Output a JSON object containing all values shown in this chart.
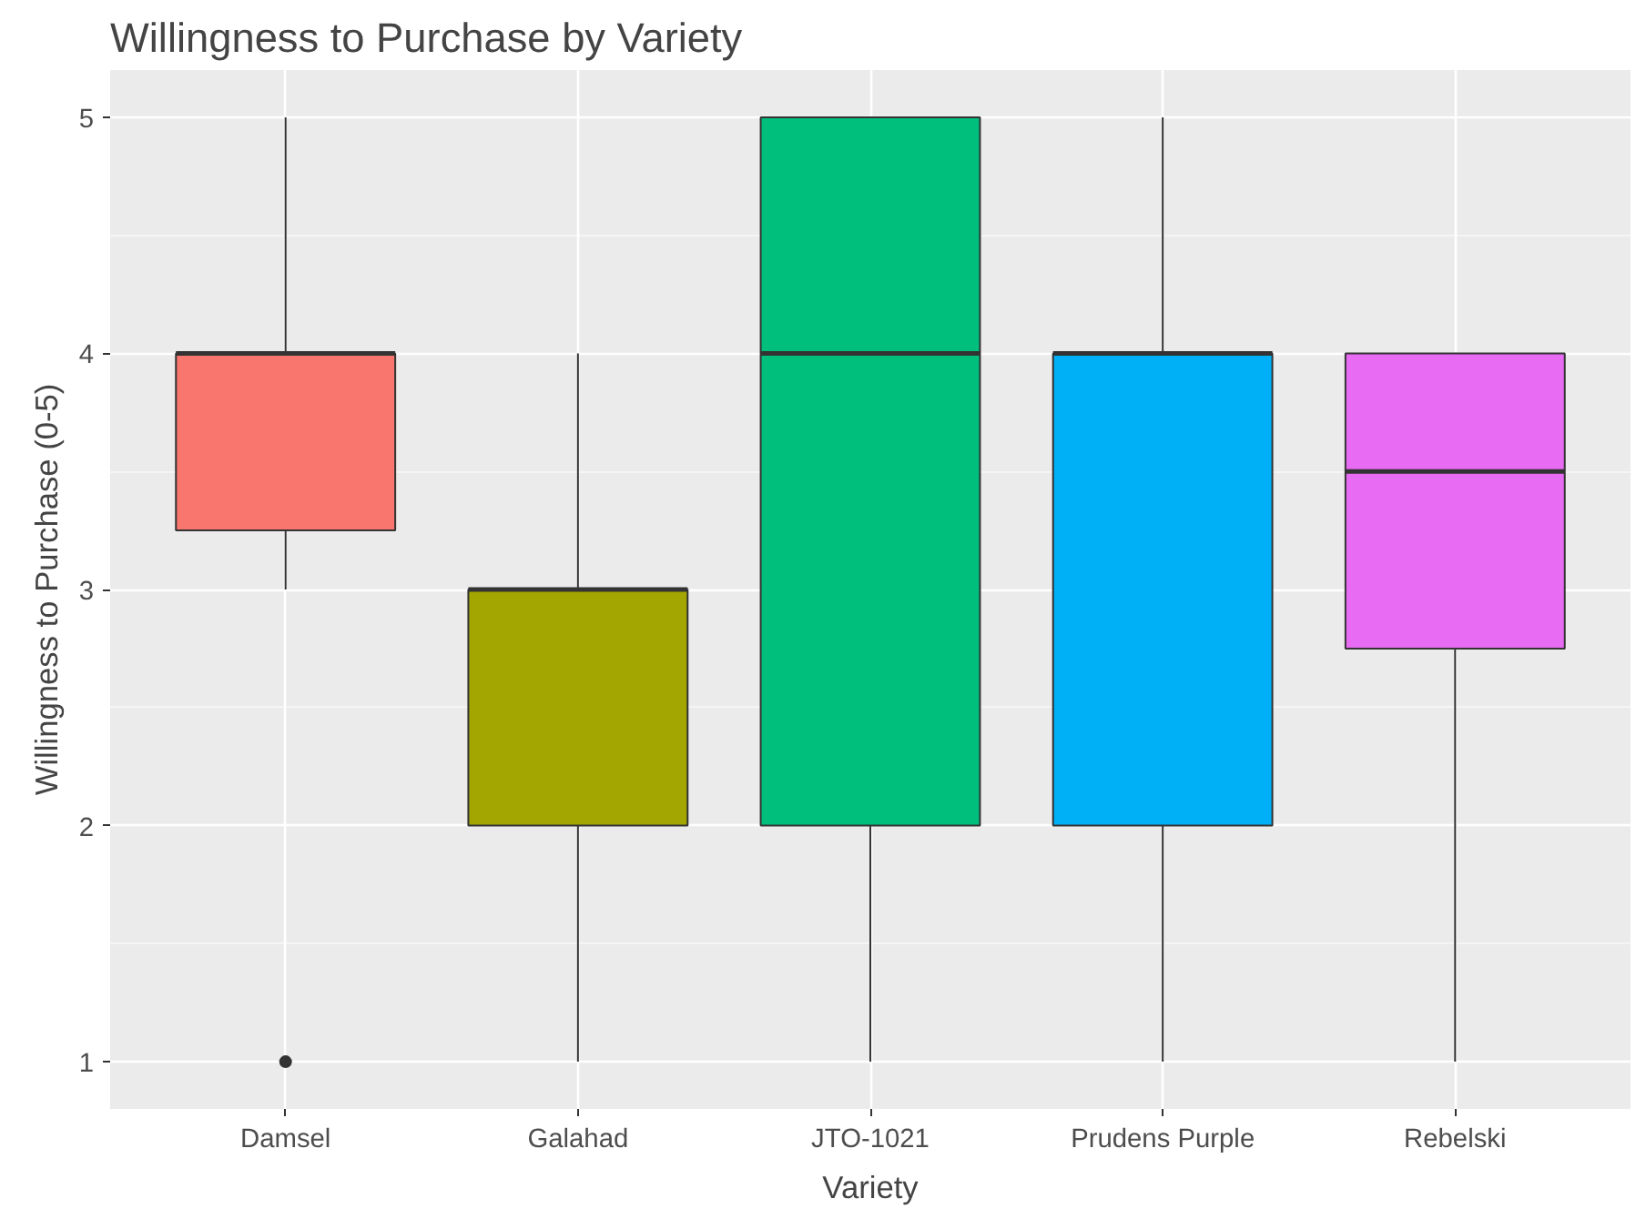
{
  "chart_data": {
    "type": "box",
    "title": "Willingness to Purchase by Variety",
    "xlabel": "Variety",
    "ylabel": "Willingness to Purchase (0-5)",
    "categories": [
      "Damsel",
      "Galahad",
      "JTO-1021",
      "Prudens Purple",
      "Rebelski"
    ],
    "colors": [
      "#f8766d",
      "#a3a500",
      "#00bf7d",
      "#00b0f6",
      "#e76bf3"
    ],
    "boxes": [
      {
        "low": 3,
        "q1": 3.25,
        "median": 4,
        "q3": 4,
        "high": 5,
        "outliers": [
          1
        ]
      },
      {
        "low": 1,
        "q1": 2,
        "median": 3,
        "q3": 3,
        "high": 4
      },
      {
        "low": 1,
        "q1": 2,
        "median": 4,
        "q3": 5,
        "high": 5
      },
      {
        "low": 1,
        "q1": 2,
        "median": 4,
        "q3": 4,
        "high": 5
      },
      {
        "low": 1,
        "q1": 2.75,
        "median": 3.5,
        "q3": 4,
        "high": 4
      }
    ],
    "ylim": [
      0.8,
      5.2
    ],
    "yticks": [
      1,
      2,
      3,
      4,
      5
    ],
    "grid": true
  }
}
